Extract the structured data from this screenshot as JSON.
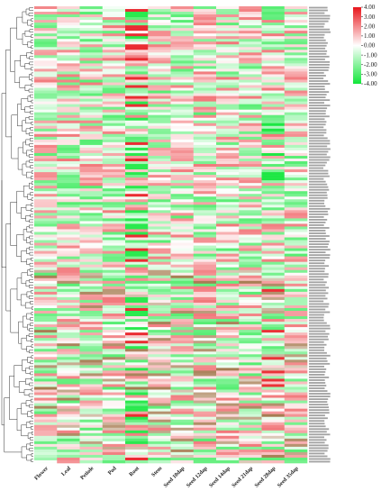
{
  "chart_data": {
    "type": "heatmap",
    "columns": [
      "Flower",
      "Leaf",
      "Petiole",
      "Pod",
      "Root",
      "Stem",
      "Seed 10dap",
      "Seed 12dap",
      "Seed 14dap",
      "Seed 21dap",
      "Seed 28dap",
      "Seed 35dap"
    ],
    "colorbar": {
      "ticks": [
        "4.00",
        "3.00",
        "2.00",
        "1.00",
        "0.00",
        "-1.00",
        "-2.00",
        "-3.00",
        "-4.00"
      ],
      "range": [
        -4,
        4
      ],
      "colors": {
        "high": "#e8151b",
        "mid": "#ffffff",
        "low": "#12e63a"
      }
    },
    "row_count": 168,
    "gene_label_prefix": "Medtr",
    "grid": false,
    "legend_position": "top-right",
    "values_note": "Cell values not legible in the image; shown as color-coded log2 expression"
  },
  "colors": {
    "high": "#e8151b",
    "low": "#12e63a",
    "mid": "#ffffff",
    "brown": "#9a6a3a",
    "tree": "#333333"
  }
}
